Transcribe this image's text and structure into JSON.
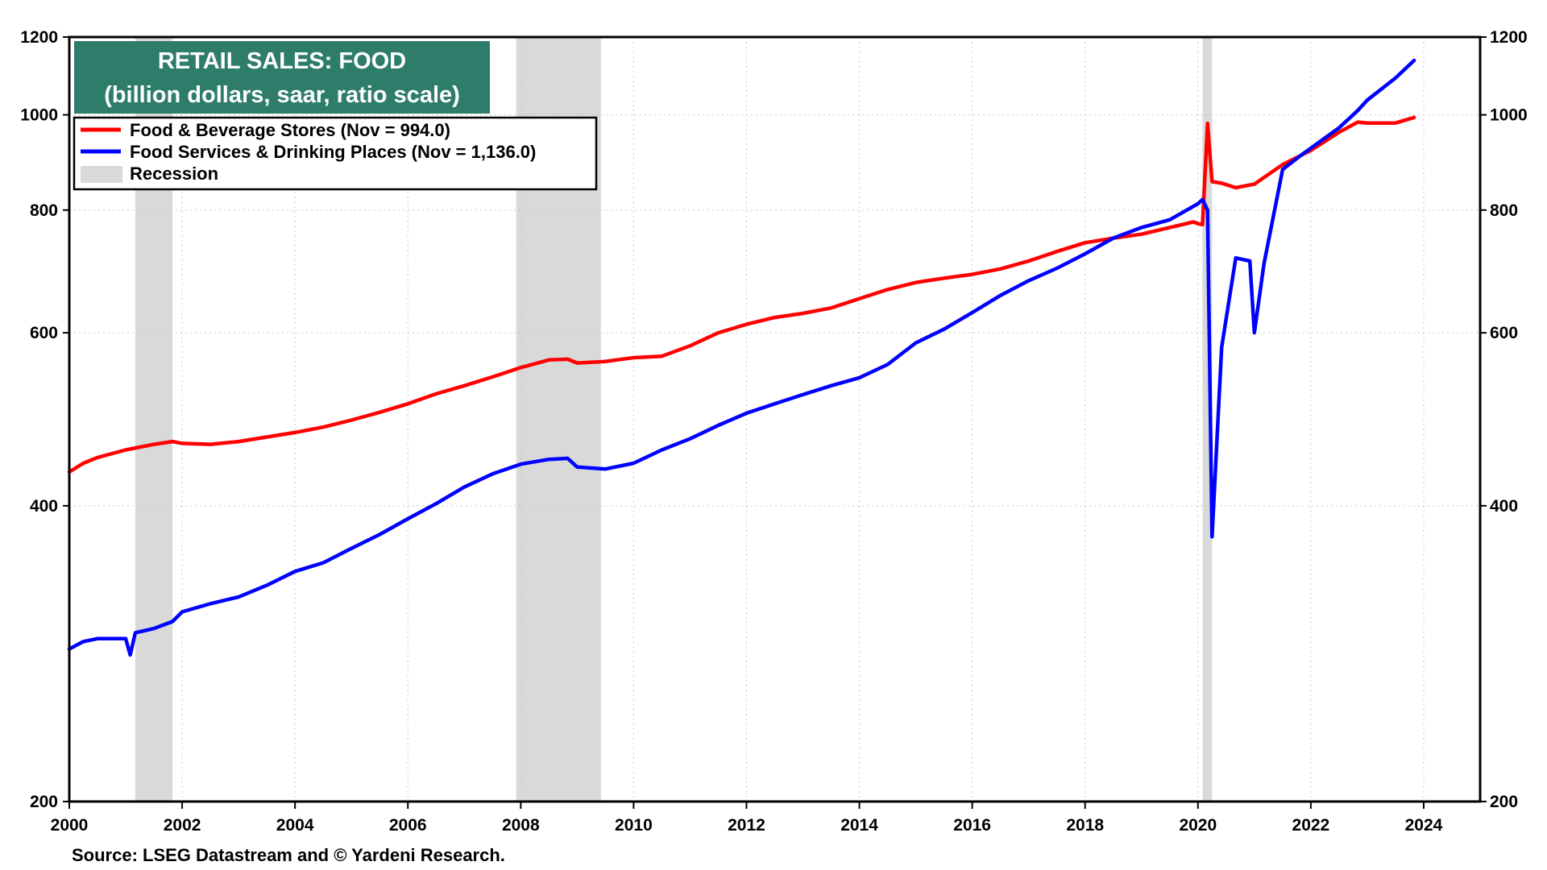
{
  "chart_data": {
    "type": "line",
    "title": "RETAIL SALES: FOOD",
    "subtitle": "(billion dollars, saar, ratio scale)",
    "source": "Source: LSEG Datastream and © Yardeni Research.",
    "scale": "log",
    "ylim": [
      200,
      1200
    ],
    "xlim": [
      2000,
      2025
    ],
    "y_ticks": [
      200,
      400,
      600,
      800,
      1000,
      1200
    ],
    "x_ticks": [
      2000,
      2002,
      2004,
      2006,
      2008,
      2010,
      2012,
      2014,
      2016,
      2018,
      2020,
      2022,
      2024
    ],
    "grid": true,
    "legend_position": "top-left",
    "recessions": [
      {
        "start": 2001.17,
        "end": 2001.83
      },
      {
        "start": 2007.92,
        "end": 2009.42
      },
      {
        "start": 2020.08,
        "end": 2020.25
      }
    ],
    "recession_label": "Recession",
    "recession_color": "#d9d9d9",
    "title_box_color": "#2e7d6b",
    "series": [
      {
        "name": "Food & Beverage Stores (Nov = 994.0)",
        "color": "#ff0000",
        "x": [
          2000.0,
          2000.25,
          2000.5,
          2001.0,
          2001.5,
          2001.83,
          2002.0,
          2002.5,
          2003.0,
          2003.5,
          2004.0,
          2004.5,
          2005.0,
          2005.5,
          2006.0,
          2006.5,
          2007.0,
          2007.5,
          2008.0,
          2008.5,
          2008.83,
          2009.0,
          2009.5,
          2010.0,
          2010.5,
          2011.0,
          2011.5,
          2012.0,
          2012.5,
          2013.0,
          2013.5,
          2014.0,
          2014.5,
          2015.0,
          2015.5,
          2016.0,
          2016.5,
          2017.0,
          2017.5,
          2018.0,
          2018.5,
          2019.0,
          2019.5,
          2019.92,
          2020.0,
          2020.08,
          2020.17,
          2020.25,
          2020.42,
          2020.67,
          2021.0,
          2021.5,
          2022.0,
          2022.5,
          2022.83,
          2023.0,
          2023.5,
          2023.83
        ],
        "values": [
          433,
          442,
          448,
          456,
          462,
          465,
          463,
          462,
          465,
          470,
          475,
          481,
          489,
          498,
          508,
          520,
          530,
          541,
          553,
          563,
          564,
          559,
          561,
          566,
          568,
          582,
          600,
          612,
          622,
          628,
          636,
          650,
          664,
          675,
          682,
          688,
          697,
          710,
          726,
          741,
          749,
          756,
          768,
          778,
          775,
          773,
          980,
          855,
          852,
          843,
          850,
          890,
          920,
          960,
          983,
          981,
          981,
          994
        ]
      },
      {
        "name": "Food Services & Drinking Places (Nov = 1,136.0)",
        "color": "#0000ff",
        "x": [
          2000.0,
          2000.25,
          2000.5,
          2001.0,
          2001.08,
          2001.17,
          2001.5,
          2001.83,
          2002.0,
          2002.5,
          2003.0,
          2003.5,
          2004.0,
          2004.5,
          2005.0,
          2005.5,
          2006.0,
          2006.5,
          2007.0,
          2007.5,
          2008.0,
          2008.5,
          2008.83,
          2009.0,
          2009.5,
          2010.0,
          2010.5,
          2011.0,
          2011.5,
          2012.0,
          2012.5,
          2013.0,
          2013.5,
          2014.0,
          2014.5,
          2015.0,
          2015.5,
          2016.0,
          2016.5,
          2017.0,
          2017.5,
          2018.0,
          2018.5,
          2019.0,
          2019.5,
          2020.0,
          2020.08,
          2020.17,
          2020.25,
          2020.42,
          2020.67,
          2020.92,
          2021.0,
          2021.17,
          2021.5,
          2021.83,
          2022.0,
          2022.5,
          2022.83,
          2023.0,
          2023.5,
          2023.83
        ],
        "values": [
          286,
          291,
          293,
          293,
          282,
          297,
          300,
          305,
          312,
          318,
          323,
          332,
          343,
          350,
          362,
          374,
          388,
          402,
          418,
          431,
          441,
          446,
          447,
          438,
          436,
          442,
          456,
          468,
          483,
          497,
          508,
          519,
          530,
          540,
          557,
          586,
          605,
          629,
          655,
          678,
          698,
          722,
          749,
          768,
          782,
          812,
          820,
          800,
          372,
          580,
          715,
          710,
          600,
          705,
          880,
          910,
          925,
          970,
          1010,
          1035,
          1090,
          1136
        ]
      }
    ]
  }
}
